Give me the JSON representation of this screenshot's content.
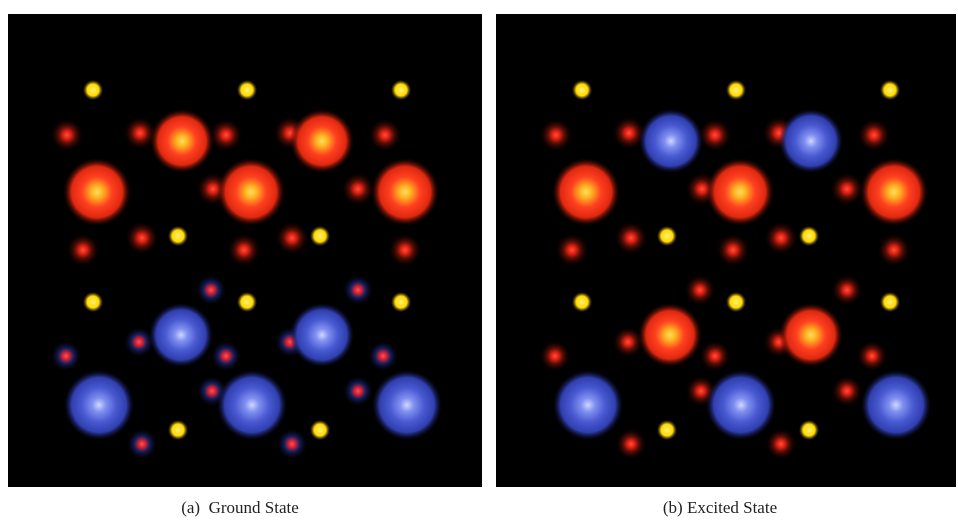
{
  "panels": [
    {
      "caption": "(a)  Ground State"
    },
    {
      "caption": "(b) Excited State"
    }
  ]
}
